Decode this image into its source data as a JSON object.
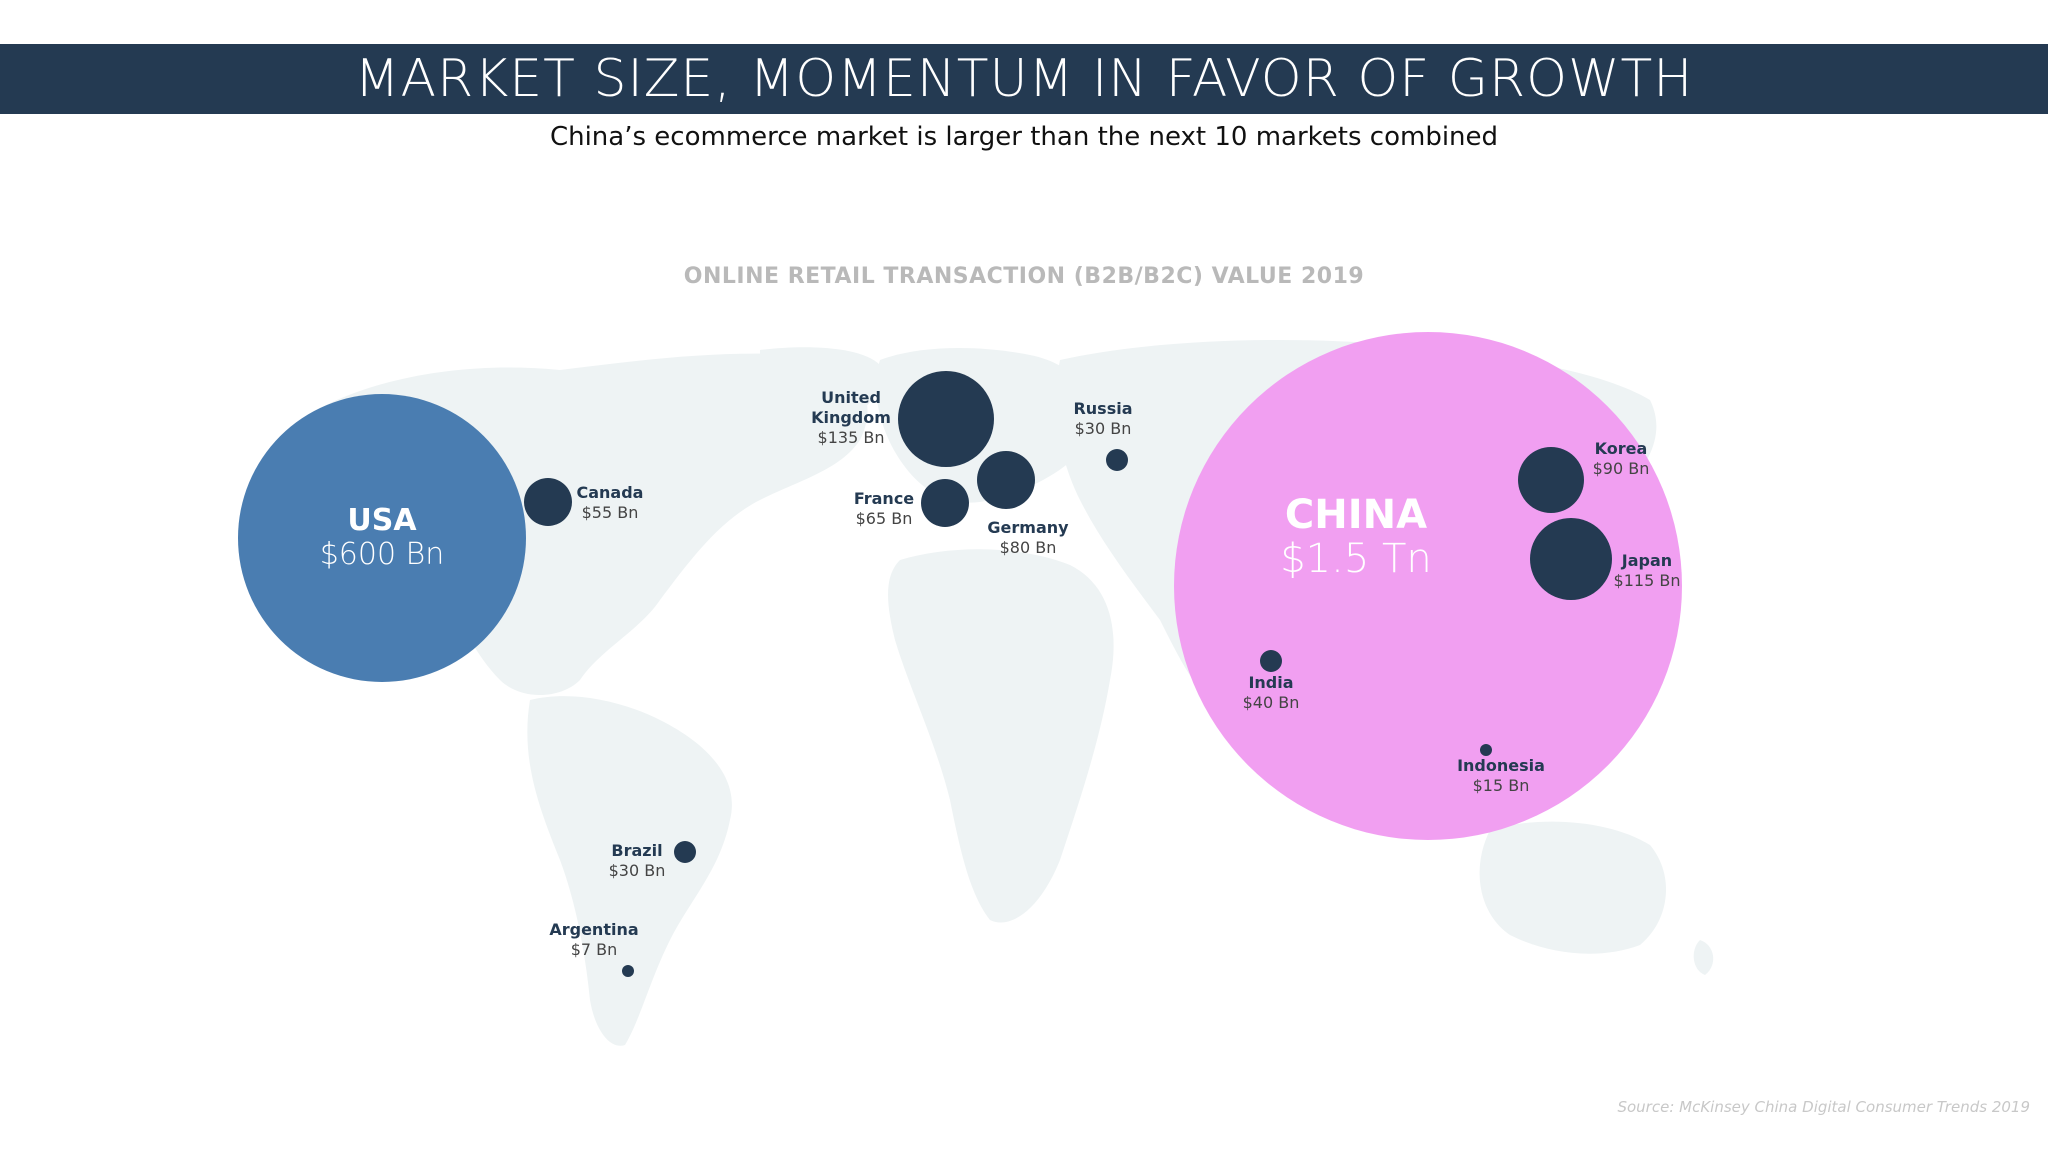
{
  "header": {
    "title": "MARKET SIZE, MOMENTUM IN FAVOR OF GROWTH",
    "subtitle": "China’s ecommerce market is larger than the next 10 markets combined"
  },
  "footer": {
    "source": "Source: McKinsey China Digital Consumer Trends 2019"
  },
  "colors": {
    "header_bg": "#243a52",
    "usa": "#4a7db1",
    "china": "#f09af0",
    "dot": "#243a52",
    "map": "#eef3f4"
  },
  "chart_data": {
    "type": "bubble-map",
    "title": "ONLINE RETAIL TRANSACTION (B2B/B2C) VALUE 2019",
    "unit": "USD",
    "markets": [
      {
        "id": "usa",
        "name": "USA",
        "label": "$600 Bn",
        "value_bn": 600
      },
      {
        "id": "china",
        "name": "CHINA",
        "label": "$1.5 Tn",
        "value_bn": 1500
      },
      {
        "id": "canada",
        "name": "Canada",
        "label": "$55 Bn",
        "value_bn": 55
      },
      {
        "id": "uk",
        "name": "United Kingdom",
        "label": "$135 Bn",
        "value_bn": 135
      },
      {
        "id": "france",
        "name": "France",
        "label": "$65 Bn",
        "value_bn": 65
      },
      {
        "id": "germany",
        "name": "Germany",
        "label": "$80 Bn",
        "value_bn": 80
      },
      {
        "id": "russia",
        "name": "Russia",
        "label": "$30 Bn",
        "value_bn": 30
      },
      {
        "id": "korea",
        "name": "Korea",
        "label": "$90 Bn",
        "value_bn": 90
      },
      {
        "id": "japan",
        "name": "Japan",
        "label": "$115 Bn",
        "value_bn": 115
      },
      {
        "id": "india",
        "name": "India",
        "label": "$40 Bn",
        "value_bn": 40
      },
      {
        "id": "indonesia",
        "name": "Indonesia",
        "label": "$15 Bn",
        "value_bn": 15
      },
      {
        "id": "brazil",
        "name": "Brazil",
        "label": "$30 Bn",
        "value_bn": 30
      },
      {
        "id": "argentina",
        "name": "Argentina",
        "label": "$7 Bn",
        "value_bn": 7
      }
    ]
  }
}
